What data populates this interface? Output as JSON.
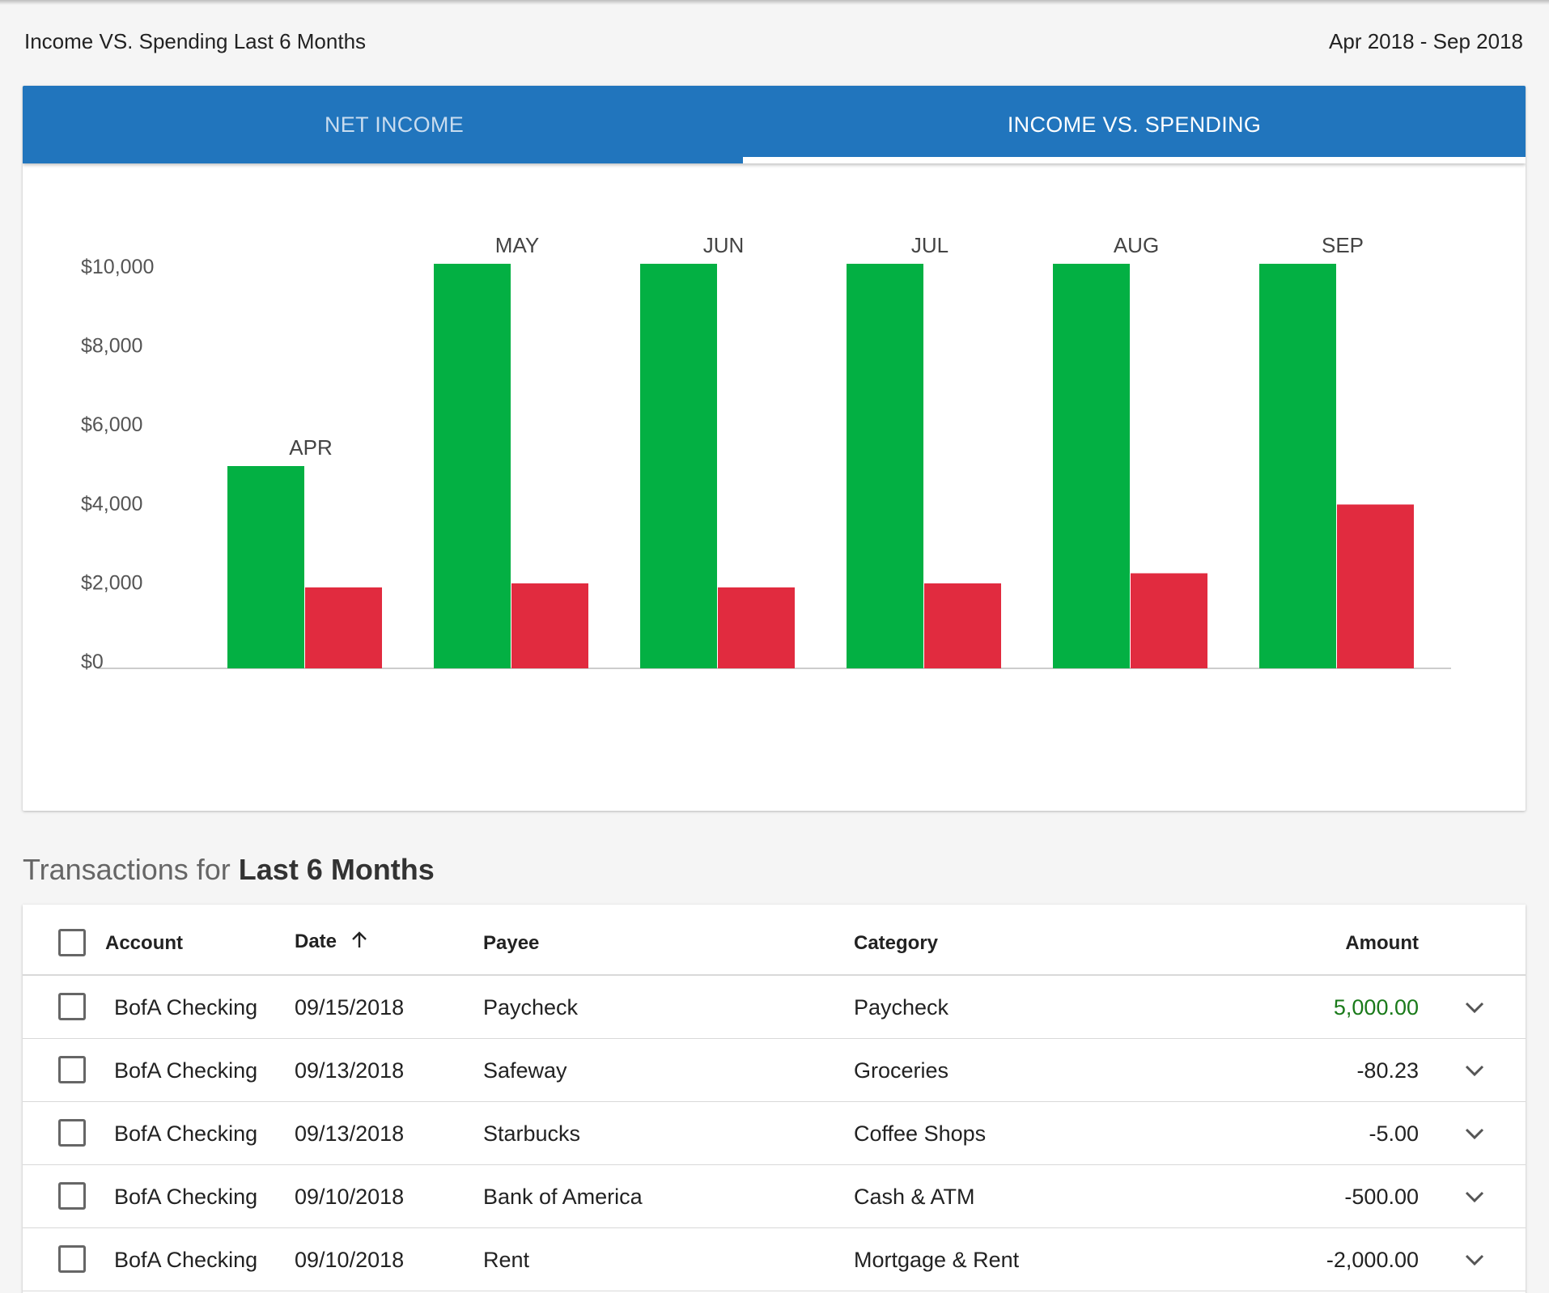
{
  "header": {
    "title": "Income VS. Spending Last 6 Months",
    "date_range": "Apr 2018 - Sep 2018"
  },
  "tabs": [
    {
      "label": "NET INCOME",
      "active": false
    },
    {
      "label": "INCOME VS. SPENDING",
      "active": true
    }
  ],
  "colors": {
    "tab_bar": "#2175bd",
    "income": "#03b043",
    "spending": "#e12b3f",
    "positive_amount": "#1a7a1a"
  },
  "chart_data": {
    "type": "bar",
    "categories": [
      "APR",
      "MAY",
      "JUN",
      "JUL",
      "AUG",
      "SEP"
    ],
    "series": [
      {
        "values": [
          5000,
          10000,
          10000,
          10000,
          10000,
          10000
        ],
        "color": "#03b043"
      },
      {
        "values": [
          2000,
          2100,
          2000,
          2100,
          2350,
          4050
        ],
        "color": "#e12b3f"
      }
    ],
    "y_ticks": [
      "$0",
      "$2,000",
      "$4,000",
      "$6,000",
      "$8,000",
      "$10,000"
    ],
    "ylim": [
      0,
      10000
    ],
    "grid": false,
    "category_label_position": "above income bar"
  },
  "transactions": {
    "title_prefix": "Transactions for",
    "title_period": "Last 6 Months",
    "columns": {
      "account": "Account",
      "date": "Date",
      "payee": "Payee",
      "category": "Category",
      "amount": "Amount"
    },
    "sort_icon": "arrow-up-icon",
    "rows": [
      {
        "account": "BofA Checking",
        "date": "09/15/2018",
        "payee": "Paycheck",
        "category": "Paycheck",
        "amount": "5,000.00",
        "positive": true
      },
      {
        "account": "BofA Checking",
        "date": "09/13/2018",
        "payee": "Safeway",
        "category": "Groceries",
        "amount": "-80.23",
        "positive": false
      },
      {
        "account": "BofA Checking",
        "date": "09/13/2018",
        "payee": "Starbucks",
        "category": "Coffee Shops",
        "amount": "-5.00",
        "positive": false
      },
      {
        "account": "BofA Checking",
        "date": "09/10/2018",
        "payee": "Bank of America",
        "category": "Cash & ATM",
        "amount": "-500.00",
        "positive": false
      },
      {
        "account": "BofA Checking",
        "date": "09/10/2018",
        "payee": "Rent",
        "category": "Mortgage & Rent",
        "amount": "-2,000.00",
        "positive": false
      }
    ]
  }
}
